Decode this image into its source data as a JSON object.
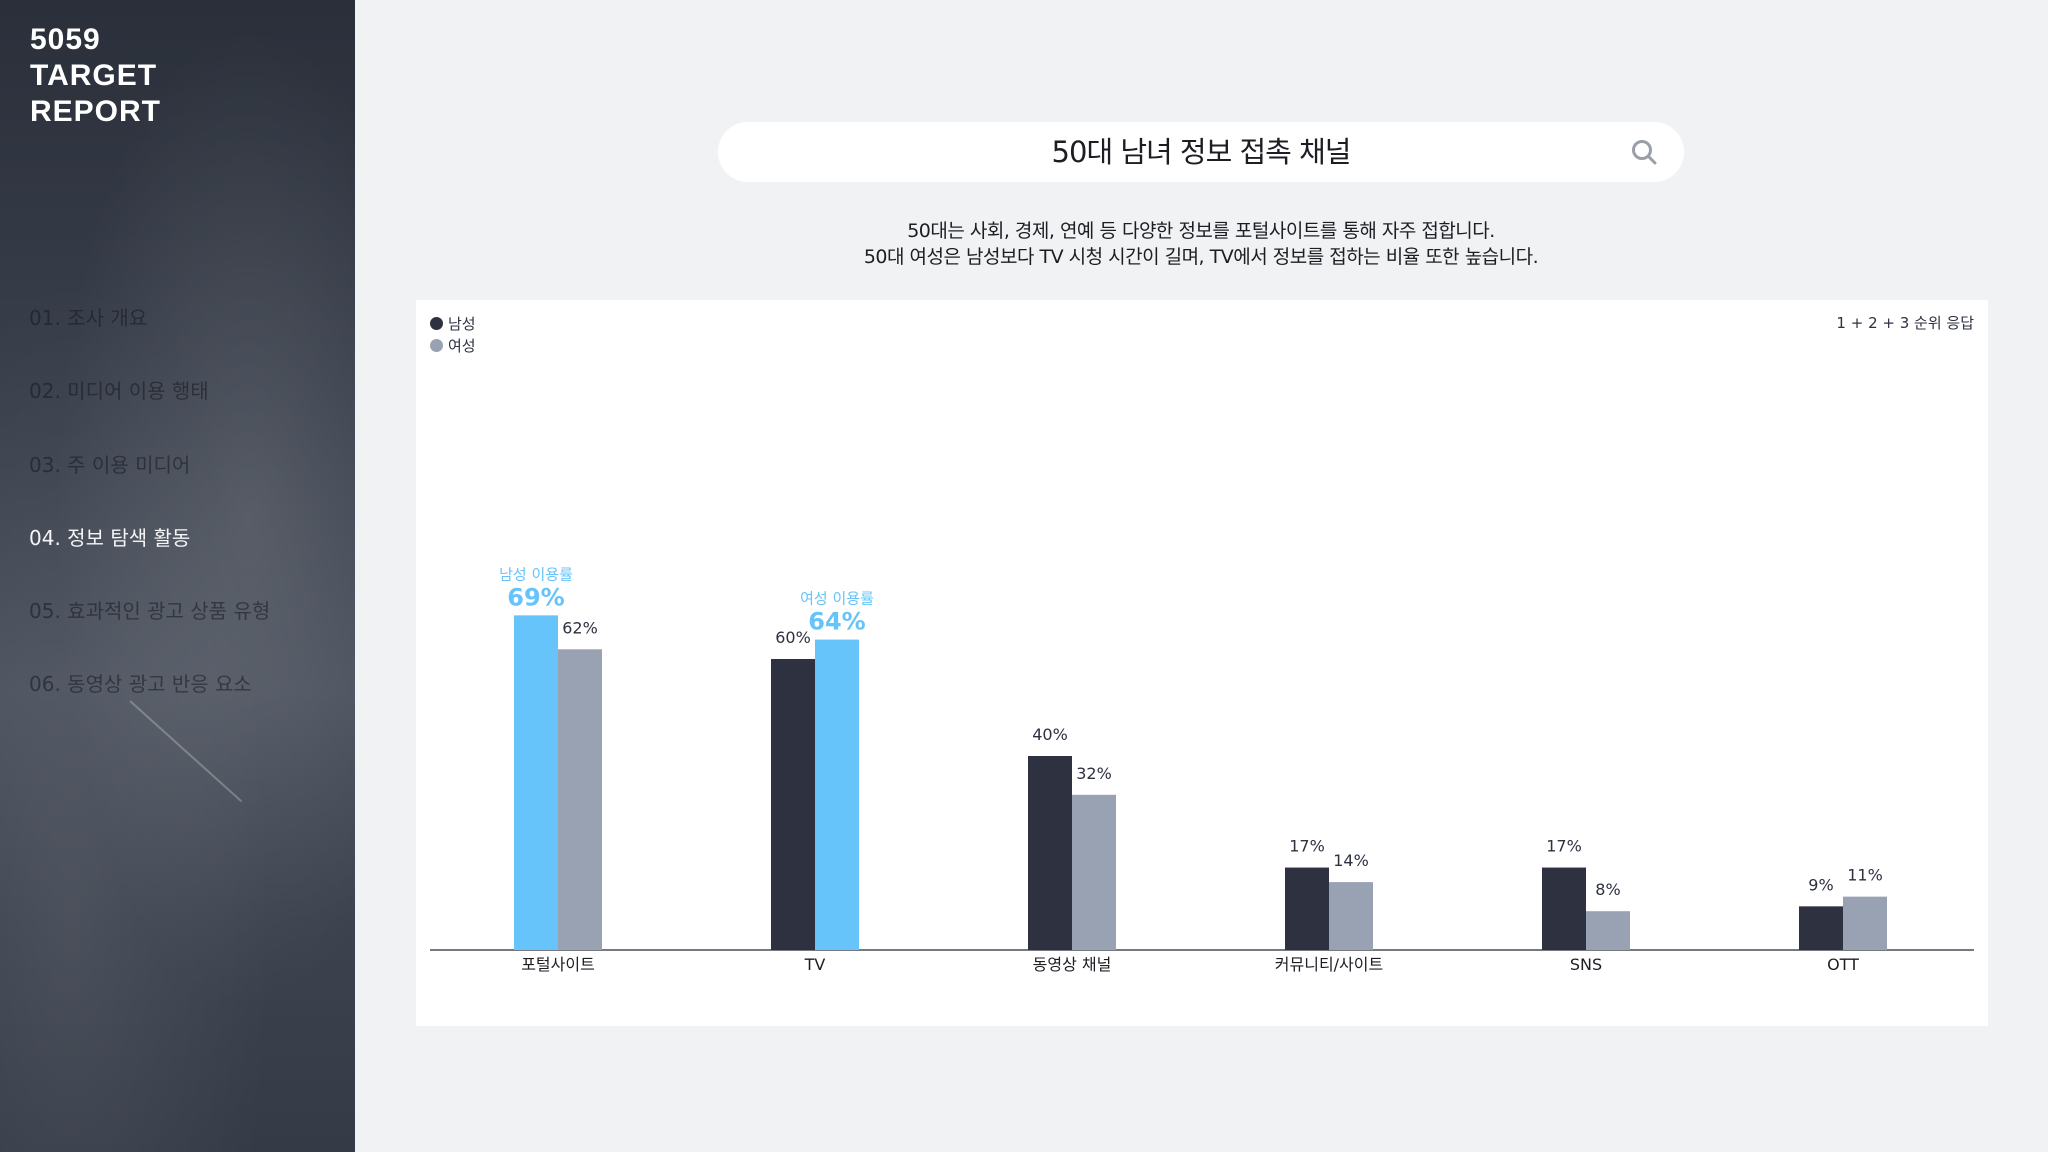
{
  "sidebar": {
    "brand_line1": "5059",
    "brand_line2": "TARGET",
    "brand_line3": "REPORT",
    "menu": [
      {
        "label": "01. 조사 개요"
      },
      {
        "label": "02. 미디어 이용 행태"
      },
      {
        "label": "03. 주 이용 미디어"
      },
      {
        "label": "04. 정보 탐색 활동"
      },
      {
        "label": "05. 효과적인 광고 상품 유형"
      },
      {
        "label": "06. 동영상 광고 반응 요소"
      }
    ],
    "active_index": 3
  },
  "header": {
    "title": "50대 남녀 정보 접촉 채널",
    "search_icon": "search-icon",
    "desc_line1": "50대는 사회, 경제, 연예 등 다양한 정보를 포털사이트를 통해 자주 접합니다.",
    "desc_line2": "50대 여성은 남성보다 TV 시청 시간이 길며, TV에서 정보를 접하는 비율 또한 높습니다."
  },
  "colors": {
    "male": "#2e3140",
    "female": "#98a2b3",
    "highlight": "#66c4fb"
  },
  "chart_data": {
    "type": "bar",
    "note": "1 + 2 + 3 순위 응답",
    "categories": [
      "포털사이트",
      "TV",
      "동영상 채널",
      "커뮤니티/사이트",
      "SNS",
      "OTT"
    ],
    "series": [
      {
        "name": "남성",
        "values": [
          69,
          60,
          40,
          17,
          17,
          9
        ]
      },
      {
        "name": "여성",
        "values": [
          62,
          64,
          32,
          14,
          8,
          11
        ]
      }
    ],
    "unit": "%",
    "ylim": [
      0,
      100
    ],
    "legend_position": "top-left",
    "highlights": [
      {
        "category": "포털사이트",
        "series": "남성",
        "label": "남성 이용률"
      },
      {
        "category": "TV",
        "series": "여성",
        "label": "여성 이용률"
      }
    ]
  }
}
